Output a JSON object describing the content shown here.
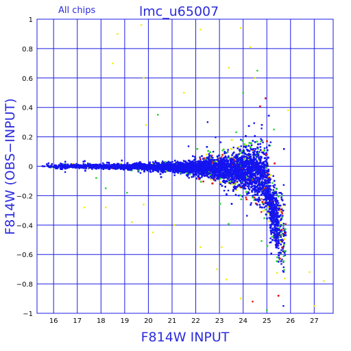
{
  "header": {
    "subset_label": "All chips",
    "dataset_title": "lmc_u65007"
  },
  "chart_data": {
    "type": "scatter",
    "xlabel": "F814W INPUT",
    "ylabel": "F814W (OBS−INPUT)",
    "xlim": [
      15.3,
      27.8
    ],
    "ylim": [
      -1,
      1
    ],
    "x_ticks": [
      16,
      17,
      18,
      19,
      20,
      21,
      22,
      23,
      24,
      25,
      26,
      27
    ],
    "y_ticks": [
      -1,
      -0.8,
      -0.6,
      -0.4,
      -0.2,
      0,
      0.2,
      0.4,
      0.6,
      0.8,
      1
    ],
    "y_tick_labels": [
      "−1",
      "−0.8",
      "−0.6",
      "−0.4",
      "−0.2",
      "0",
      "0.2",
      "0.4",
      "0.6",
      "0.8",
      "1"
    ],
    "grid": true,
    "point_colors": {
      "blue": "#1414f0",
      "green": "#22d422",
      "yellow": "#f0f000",
      "red": "#e61414"
    },
    "envelope": {
      "description_points_x": [
        15.5,
        18,
        20,
        21,
        22,
        23,
        24,
        24.5,
        24.9,
        25.2,
        25.6
      ],
      "upper": [
        0.03,
        0.03,
        0.04,
        0.06,
        0.1,
        0.17,
        0.28,
        0.38,
        0.42,
        0.2,
        0.0
      ],
      "lower": [
        -0.03,
        -0.03,
        -0.05,
        -0.07,
        -0.12,
        -0.2,
        -0.32,
        -0.45,
        -0.55,
        -0.75,
        -0.95
      ]
    },
    "outliers": [
      {
        "x": 18.7,
        "y": 0.9,
        "color": "yellow"
      },
      {
        "x": 19.7,
        "y": 0.96,
        "color": "yellow"
      },
      {
        "x": 22.2,
        "y": 0.93,
        "color": "yellow"
      },
      {
        "x": 23.9,
        "y": 0.94,
        "color": "yellow"
      },
      {
        "x": 18.5,
        "y": 0.7,
        "color": "yellow"
      },
      {
        "x": 23.4,
        "y": 0.67,
        "color": "yellow"
      },
      {
        "x": 24.3,
        "y": 0.81,
        "color": "yellow"
      },
      {
        "x": 24.5,
        "y": 0.6,
        "color": "yellow"
      },
      {
        "x": 19.8,
        "y": 0.6,
        "color": "yellow"
      },
      {
        "x": 21.5,
        "y": 0.5,
        "color": "yellow"
      },
      {
        "x": 24.0,
        "y": 0.5,
        "color": "green"
      },
      {
        "x": 24.6,
        "y": 0.65,
        "color": "green"
      },
      {
        "x": 20.4,
        "y": 0.35,
        "color": "green"
      },
      {
        "x": 22.5,
        "y": 0.3,
        "color": "blue"
      },
      {
        "x": 19.9,
        "y": 0.28,
        "color": "yellow"
      },
      {
        "x": 25.3,
        "y": 0.25,
        "color": "green"
      },
      {
        "x": 25.9,
        "y": 0.38,
        "color": "yellow"
      },
      {
        "x": 17.8,
        "y": -0.08,
        "color": "green"
      },
      {
        "x": 18.2,
        "y": -0.15,
        "color": "green"
      },
      {
        "x": 19.1,
        "y": -0.18,
        "color": "green"
      },
      {
        "x": 19.8,
        "y": -0.26,
        "color": "yellow"
      },
      {
        "x": 17.3,
        "y": -0.28,
        "color": "yellow"
      },
      {
        "x": 18.2,
        "y": -0.28,
        "color": "yellow"
      },
      {
        "x": 19.3,
        "y": -0.38,
        "color": "yellow"
      },
      {
        "x": 20.2,
        "y": -0.45,
        "color": "yellow"
      },
      {
        "x": 21.1,
        "y": -0.4,
        "color": "yellow"
      },
      {
        "x": 22.2,
        "y": -0.55,
        "color": "yellow"
      },
      {
        "x": 23.1,
        "y": -0.55,
        "color": "yellow"
      },
      {
        "x": 22.9,
        "y": -0.7,
        "color": "yellow"
      },
      {
        "x": 23.3,
        "y": -0.77,
        "color": "yellow"
      },
      {
        "x": 23.9,
        "y": -0.9,
        "color": "yellow"
      },
      {
        "x": 27.4,
        "y": -0.78,
        "color": "yellow"
      },
      {
        "x": 27.0,
        "y": -0.95,
        "color": "yellow"
      },
      {
        "x": 26.8,
        "y": -0.72,
        "color": "yellow"
      },
      {
        "x": 25.0,
        "y": -0.98,
        "color": "green"
      },
      {
        "x": 24.4,
        "y": -0.92,
        "color": "red"
      },
      {
        "x": 25.7,
        "y": -0.95,
        "color": "blue"
      }
    ]
  }
}
